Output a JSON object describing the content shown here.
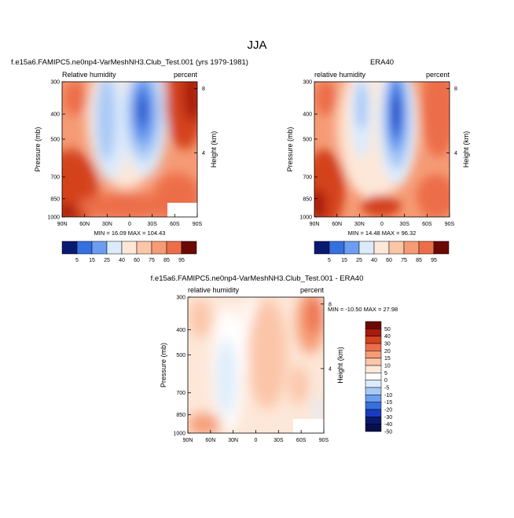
{
  "figure": {
    "season": "JJA"
  },
  "panels": [
    {
      "id": "model",
      "title": "f.e15a6.FAMIPC5.ne0np4-VarMeshNH3.Club_Test.001 (yrs 1979-1981)",
      "left_label": "Relative humidity",
      "right_label": "percent",
      "ylabel": "Pressure (mb)",
      "ylabel_right": "Height (km)",
      "y_ticks": [
        "300",
        "400",
        "500",
        "700",
        "850",
        "1000"
      ],
      "x_ticks": [
        "90N",
        "60N",
        "30N",
        "0",
        "30S",
        "60S",
        "90S"
      ],
      "height_ticks": [
        "8",
        "4"
      ],
      "stats": "MIN =  16.09  MAX = 104.43"
    },
    {
      "id": "obs",
      "title": "ERA40",
      "left_label": "relative humidity",
      "right_label": "percent",
      "ylabel": "Pressure (mb)",
      "ylabel_right": "Height (km)",
      "y_ticks": [
        "300",
        "400",
        "500",
        "700",
        "850",
        "1000"
      ],
      "x_ticks": [
        "90N",
        "60N",
        "30N",
        "0",
        "30S",
        "60S",
        "90S"
      ],
      "height_ticks": [
        "8",
        "4"
      ],
      "stats": "MIN =  14.48  MAX =  96.32"
    },
    {
      "id": "diff",
      "title": "f.e15a6.FAMIPC5.ne0np4-VarMeshNH3.Club_Test.001 - ERA40",
      "left_label": "relative humidity",
      "right_label": "percent",
      "ylabel": "Pressure (mb)",
      "ylabel_right": "Height (km)",
      "y_ticks": [
        "300",
        "400",
        "500",
        "700",
        "850",
        "1000"
      ],
      "x_ticks": [
        "90N",
        "60N",
        "30N",
        "0",
        "30S",
        "60S",
        "90S"
      ],
      "height_ticks": [
        "8",
        "4"
      ],
      "stats": "MIN = -10.50  MAX =  27.98"
    }
  ],
  "colorbars": {
    "model": [
      "5",
      "15",
      "25",
      "40",
      "60",
      "75",
      "85",
      "95"
    ],
    "obs": [
      "5",
      "15",
      "25",
      "40",
      "60",
      "75",
      "85",
      "95"
    ],
    "diff": [
      "50",
      "40",
      "30",
      "20",
      "15",
      "10",
      "5",
      "0",
      "-5",
      "-10",
      "-15",
      "-20",
      "-30",
      "-40",
      "-50"
    ]
  },
  "colors": {
    "abs_fills": [
      "#0a1a70",
      "#1a3bbf",
      "#3570e0",
      "#6c9df0",
      "#a8c8f5",
      "#dcebfb",
      "#fde7d8",
      "#fbc5a8",
      "#f59b75",
      "#ec6e48",
      "#d4421f",
      "#a81b0d",
      "#6b0a05"
    ],
    "diff_fills": [
      "#6b0a05",
      "#a81b0d",
      "#d4421f",
      "#ec6e48",
      "#f59b75",
      "#fbc5a8",
      "#fde7d8",
      "#ffffff",
      "#dcebfb",
      "#a8c8f5",
      "#6c9df0",
      "#3570e0",
      "#1a3bbf",
      "#0a1a70"
    ]
  },
  "chart_data": [
    {
      "type": "heatmap",
      "title": "f.e15a6.FAMIPC5.ne0np4-VarMeshNH3.Club_Test.001 (yrs 1979-1981)",
      "variable": "Relative humidity",
      "units": "percent",
      "x_categories": [
        "90N",
        "60N",
        "30N",
        "0",
        "30S",
        "60S",
        "90S"
      ],
      "y_levels_mb": [
        300,
        400,
        500,
        700,
        850,
        1000
      ],
      "min": 16.09,
      "max": 104.43
    },
    {
      "type": "heatmap",
      "title": "ERA40",
      "variable": "relative humidity",
      "units": "percent",
      "x_categories": [
        "90N",
        "60N",
        "30N",
        "0",
        "30S",
        "60S",
        "90S"
      ],
      "y_levels_mb": [
        300,
        400,
        500,
        700,
        850,
        1000
      ],
      "min": 14.48,
      "max": 96.32
    },
    {
      "type": "heatmap",
      "title": "f.e15a6.FAMIPC5.ne0np4-VarMeshNH3.Club_Test.001 - ERA40",
      "variable": "relative humidity",
      "units": "percent",
      "x_categories": [
        "90N",
        "60N",
        "30N",
        "0",
        "30S",
        "60S",
        "90S"
      ],
      "y_levels_mb": [
        300,
        400,
        500,
        700,
        850,
        1000
      ],
      "min": -10.5,
      "max": 27.98
    }
  ]
}
